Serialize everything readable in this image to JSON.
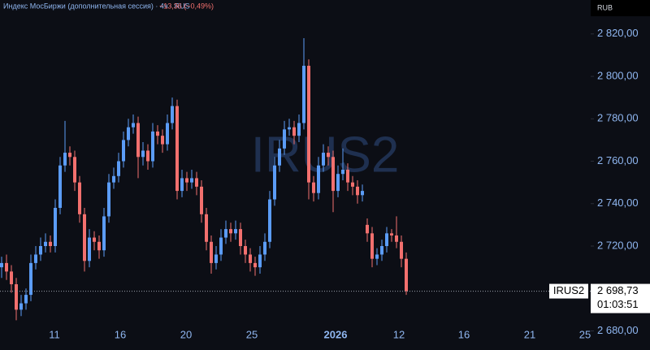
{
  "chart_data": {
    "type": "candlestick",
    "header": {
      "title": "Индекс МосБиржи (дополнительная сессия) · 4ч · RUS",
      "change": "−13,36 (−0,49%)"
    },
    "currency": "RUB",
    "watermark": "IRUS2",
    "symbol": "IRUS2",
    "last_price": {
      "value": 2698.73,
      "label": "2 698,73"
    },
    "countdown": "01:03:51",
    "up_color": "#5b9cf6",
    "down_color": "#f2706e",
    "x_labels": [
      "11",
      "16",
      "20",
      "25",
      "2026",
      "12",
      "16",
      "21",
      "25"
    ],
    "ylim": [
      2671,
      2836
    ],
    "yticks": [
      {
        "value": 2820,
        "label": "2 820,00"
      },
      {
        "value": 2800,
        "label": "2 800,00"
      },
      {
        "value": 2780,
        "label": "2 780,00"
      },
      {
        "value": 2760,
        "label": "2 760,00"
      },
      {
        "value": 2740,
        "label": "2 740,00"
      },
      {
        "value": 2720,
        "label": "2 720,00"
      },
      {
        "value": 2680,
        "label": "2 680,00"
      }
    ],
    "open": [
      2710,
      2712,
      2708,
      2702,
      2690,
      2693,
      2697,
      2712,
      2716,
      2720,
      2722,
      2720,
      2738,
      2758,
      2764,
      2762,
      2750,
      2735,
      2713,
      2724,
      2722,
      2718,
      2734,
      2750,
      2753,
      2760,
      2770,
      2776,
      2778,
      2762,
      2765,
      2760,
      2774,
      2772,
      2768,
      2778,
      2786,
      2746,
      2752,
      2750,
      2752,
      2748,
      2735,
      2722,
      2712,
      2716,
      2724,
      2728,
      2726,
      2728,
      2720,
      2716,
      2712,
      2710,
      2716,
      2722,
      2742,
      2758,
      2766,
      2775,
      2776,
      2772,
      2778,
      2805,
      2750,
      2745,
      2758,
      2764,
      2762,
      2746,
      2754,
      2756,
      2750,
      2748,
      2744,
      2730,
      2726,
      2714,
      2716,
      2720,
      2726,
      2725,
      2722,
      2714
    ],
    "high": [
      2715,
      2716,
      2711,
      2705,
      2697,
      2700,
      2716,
      2720,
      2724,
      2726,
      2725,
      2742,
      2762,
      2779,
      2767,
      2765,
      2753,
      2738,
      2728,
      2727,
      2725,
      2738,
      2754,
      2757,
      2764,
      2774,
      2780,
      2782,
      2781,
      2769,
      2768,
      2778,
      2777,
      2775,
      2782,
      2790,
      2789,
      2756,
      2755,
      2756,
      2755,
      2751,
      2738,
      2725,
      2720,
      2728,
      2732,
      2731,
      2732,
      2731,
      2723,
      2719,
      2715,
      2720,
      2726,
      2746,
      2762,
      2770,
      2779,
      2780,
      2779,
      2782,
      2818,
      2808,
      2753,
      2762,
      2768,
      2767,
      2765,
      2758,
      2766,
      2759,
      2753,
      2751,
      2749,
      2733,
      2729,
      2719,
      2723,
      2729,
      2728,
      2734,
      2725,
      2717
    ],
    "low": [
      2705,
      2704,
      2698,
      2685,
      2687,
      2690,
      2694,
      2709,
      2713,
      2717,
      2717,
      2717,
      2735,
      2755,
      2758,
      2746,
      2731,
      2708,
      2710,
      2718,
      2714,
      2715,
      2731,
      2747,
      2750,
      2757,
      2767,
      2773,
      2752,
      2758,
      2756,
      2757,
      2768,
      2764,
      2765,
      2775,
      2742,
      2743,
      2746,
      2747,
      2744,
      2731,
      2718,
      2707,
      2709,
      2713,
      2721,
      2722,
      2723,
      2716,
      2712,
      2708,
      2706,
      2707,
      2713,
      2719,
      2739,
      2755,
      2763,
      2772,
      2768,
      2769,
      2775,
      2742,
      2741,
      2742,
      2755,
      2758,
      2736,
      2743,
      2751,
      2746,
      2744,
      2740,
      2741,
      2722,
      2710,
      2711,
      2713,
      2717,
      2722,
      2719,
      2710,
      2697
    ],
    "close": [
      2712,
      2708,
      2702,
      2690,
      2693,
      2697,
      2712,
      2716,
      2720,
      2722,
      2720,
      2738,
      2758,
      2764,
      2762,
      2750,
      2735,
      2713,
      2724,
      2722,
      2718,
      2734,
      2750,
      2753,
      2760,
      2770,
      2776,
      2778,
      2762,
      2765,
      2760,
      2774,
      2772,
      2768,
      2778,
      2786,
      2746,
      2752,
      2750,
      2752,
      2748,
      2735,
      2722,
      2712,
      2716,
      2724,
      2728,
      2726,
      2728,
      2720,
      2716,
      2712,
      2710,
      2716,
      2722,
      2742,
      2758,
      2766,
      2775,
      2776,
      2772,
      2778,
      2805,
      2750,
      2745,
      2758,
      2764,
      2762,
      2746,
      2754,
      2756,
      2750,
      2748,
      2744,
      2746,
      2726,
      2714,
      2716,
      2720,
      2726,
      2725,
      2722,
      2714,
      2698.73
    ]
  }
}
